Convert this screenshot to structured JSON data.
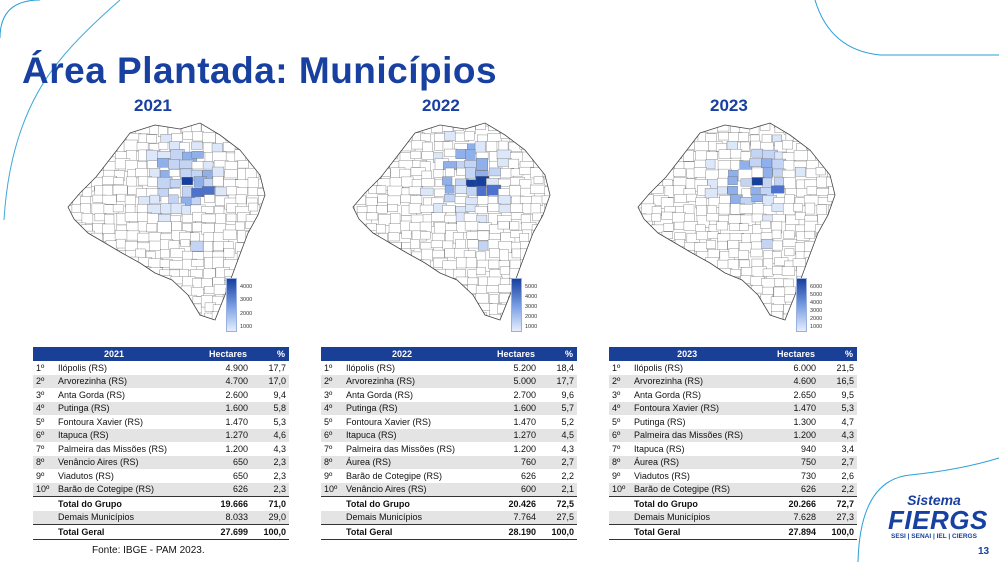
{
  "slide": {
    "title": "Área Plantada: Municípios",
    "source": "Fonte: IBGE - PAM 2023.",
    "page_number": "13",
    "logo": {
      "line1": "Sistema",
      "line2": "FIERGS",
      "line3": "SESI | SENAI | IEL | CIERGS"
    }
  },
  "colors": {
    "accent": "#1740a0",
    "table_header": "#1a3f97",
    "row_alt": "#e4e4e4",
    "map_high": "#173f9e",
    "map_low": "#e6eefc"
  },
  "panels": [
    {
      "year": "2021",
      "legend_ticks": [
        "4000",
        "3000",
        "2000",
        "1000"
      ],
      "table": {
        "headers": [
          "2021",
          "Hectares",
          "%"
        ],
        "rows": [
          [
            "1º",
            "Ilópolis (RS)",
            "4.900",
            "17,7"
          ],
          [
            "2º",
            "Arvorezinha (RS)",
            "4.700",
            "17,0"
          ],
          [
            "3º",
            "Anta Gorda (RS)",
            "2.600",
            "9,4"
          ],
          [
            "4º",
            "Putinga (RS)",
            "1.600",
            "5,8"
          ],
          [
            "5º",
            "Fontoura Xavier (RS)",
            "1.470",
            "5,3"
          ],
          [
            "6º",
            "Itapuca (RS)",
            "1.270",
            "4,6"
          ],
          [
            "7º",
            "Palmeira das Missões (RS)",
            "1.200",
            "4,3"
          ],
          [
            "8º",
            "Venâncio Aires (RS)",
            "650",
            "2,3"
          ],
          [
            "9º",
            "Viadutos (RS)",
            "650",
            "2,3"
          ],
          [
            "10º",
            "Barão de Cotegipe (RS)",
            "626",
            "2,3"
          ]
        ],
        "group_total": [
          "Total do Grupo",
          "19.666",
          "71,0"
        ],
        "others": [
          "Demais Municípios",
          "8.033",
          "29,0"
        ],
        "grand_total": [
          "Total Geral",
          "27.699",
          "100,0"
        ]
      }
    },
    {
      "year": "2022",
      "legend_ticks": [
        "5000",
        "4000",
        "3000",
        "2000",
        "1000"
      ],
      "table": {
        "headers": [
          "2022",
          "Hectares",
          "%"
        ],
        "rows": [
          [
            "1º",
            "Ilópolis (RS)",
            "5.200",
            "18,4"
          ],
          [
            "2º",
            "Arvorezinha (RS)",
            "5.000",
            "17,7"
          ],
          [
            "3º",
            "Anta Gorda (RS)",
            "2.700",
            "9,6"
          ],
          [
            "4º",
            "Putinga (RS)",
            "1.600",
            "5,7"
          ],
          [
            "5º",
            "Fontoura Xavier (RS)",
            "1.470",
            "5,2"
          ],
          [
            "6º",
            "Itapuca (RS)",
            "1.270",
            "4,5"
          ],
          [
            "7º",
            "Palmeira das Missões (RS)",
            "1.200",
            "4,3"
          ],
          [
            "8º",
            "Áurea (RS)",
            "760",
            "2,7"
          ],
          [
            "9º",
            "Barão de Cotegipe (RS)",
            "626",
            "2,2"
          ],
          [
            "10º",
            "Venâncio Aires (RS)",
            "600",
            "2,1"
          ]
        ],
        "group_total": [
          "Total do Grupo",
          "20.426",
          "72,5"
        ],
        "others": [
          "Demais Municípios",
          "7.764",
          "27,5"
        ],
        "grand_total": [
          "Total Geral",
          "28.190",
          "100,0"
        ]
      }
    },
    {
      "year": "2023",
      "legend_ticks": [
        "6000",
        "5000",
        "4000",
        "3000",
        "2000",
        "1000"
      ],
      "table": {
        "headers": [
          "2023",
          "Hectares",
          "%"
        ],
        "rows": [
          [
            "1º",
            "Ilópolis (RS)",
            "6.000",
            "21,5"
          ],
          [
            "2º",
            "Arvorezinha (RS)",
            "4.600",
            "16,5"
          ],
          [
            "3º",
            "Anta Gorda (RS)",
            "2.650",
            "9,5"
          ],
          [
            "4º",
            "Fontoura Xavier (RS)",
            "1.470",
            "5,3"
          ],
          [
            "5º",
            "Putinga (RS)",
            "1.300",
            "4,7"
          ],
          [
            "6º",
            "Palmeira das Missões (RS)",
            "1.200",
            "4,3"
          ],
          [
            "7º",
            "Itapuca (RS)",
            "940",
            "3,4"
          ],
          [
            "8º",
            "Áurea (RS)",
            "750",
            "2,7"
          ],
          [
            "9º",
            "Viadutos (RS)",
            "730",
            "2,6"
          ],
          [
            "10º",
            "Barão de Cotegipe (RS)",
            "626",
            "2,2"
          ]
        ],
        "group_total": [
          "Total do Grupo",
          "20.266",
          "72,7"
        ],
        "others": [
          "Demais Municípios",
          "7.628",
          "27,3"
        ],
        "grand_total": [
          "Total Geral",
          "27.894",
          "100,0"
        ]
      }
    }
  ]
}
